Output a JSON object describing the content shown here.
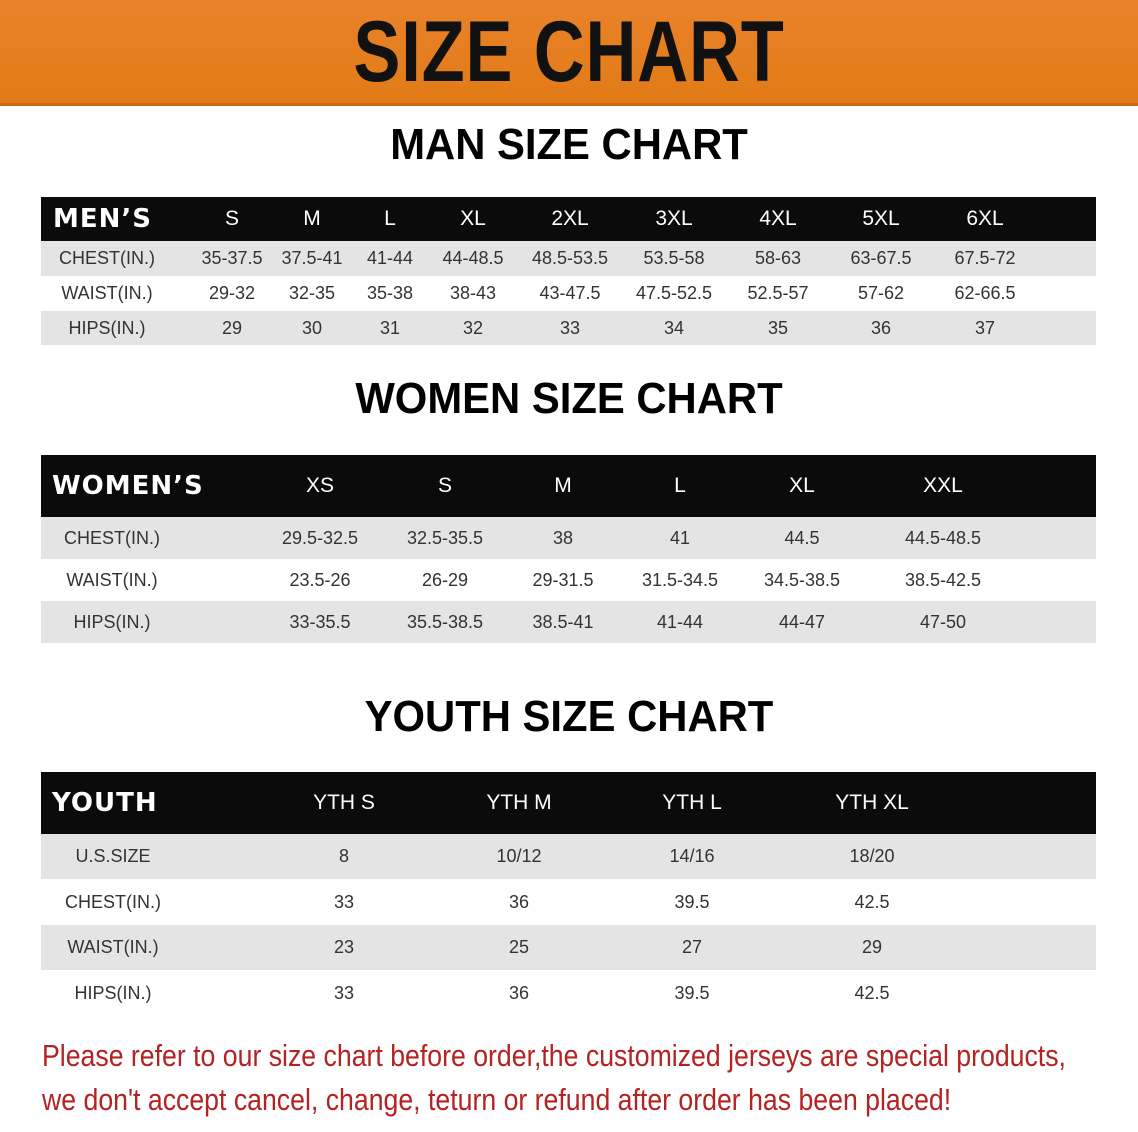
{
  "banner": {
    "title": "SIZE CHART",
    "color": "#e47d1c"
  },
  "men": {
    "title": "MAN SIZE CHART",
    "header": [
      "MEN’S",
      "S",
      "M",
      "L",
      "XL",
      "2XL",
      "3XL",
      "4XL",
      "5XL",
      "6XL"
    ],
    "rows": [
      [
        "CHEST(IN.)",
        "35-37.5",
        "37.5-41",
        "41-44",
        "44-48.5",
        "48.5-53.5",
        "53.5-58",
        "58-63",
        "63-67.5",
        "67.5-72"
      ],
      [
        "WAIST(IN.)",
        "29-32",
        "32-35",
        "35-38",
        "38-43",
        "43-47.5",
        "47.5-52.5",
        "52.5-57",
        "57-62",
        "62-66.5"
      ],
      [
        "HIPS(IN.)",
        "29",
        "30",
        "31",
        "32",
        "33",
        "34",
        "35",
        "36",
        "37"
      ]
    ]
  },
  "women": {
    "title": "WOMEN SIZE CHART",
    "header": [
      "WOMEN’S",
      "XS",
      "S",
      "M",
      "L",
      "XL",
      "XXL"
    ],
    "rows": [
      [
        "CHEST(IN.)",
        "29.5-32.5",
        "32.5-35.5",
        "38",
        "41",
        "44.5",
        "44.5-48.5"
      ],
      [
        "WAIST(IN.)",
        "23.5-26",
        "26-29",
        "29-31.5",
        "31.5-34.5",
        "34.5-38.5",
        "38.5-42.5"
      ],
      [
        "HIPS(IN.)",
        "33-35.5",
        "35.5-38.5",
        "38.5-41",
        "41-44",
        "44-47",
        "47-50"
      ]
    ]
  },
  "youth": {
    "title": "YOUTH SIZE CHART",
    "header": [
      "YOUTH",
      "YTH S",
      "YTH M",
      "YTH L",
      "YTH XL"
    ],
    "rows": [
      [
        "U.S.SIZE",
        "8",
        "10/12",
        "14/16",
        "18/20"
      ],
      [
        "CHEST(IN.)",
        "33",
        "36",
        "39.5",
        "42.5"
      ],
      [
        "WAIST(IN.)",
        "23",
        "25",
        "27",
        "29"
      ],
      [
        "HIPS(IN.)",
        "33",
        "36",
        "39.5",
        "42.5"
      ]
    ]
  },
  "notice": {
    "line1": "Please refer to our size chart before order,the customized jerseys are special products,",
    "line2": "we don't accept cancel, change, teturn or refund after order has been placed!",
    "color": "#b52222"
  }
}
